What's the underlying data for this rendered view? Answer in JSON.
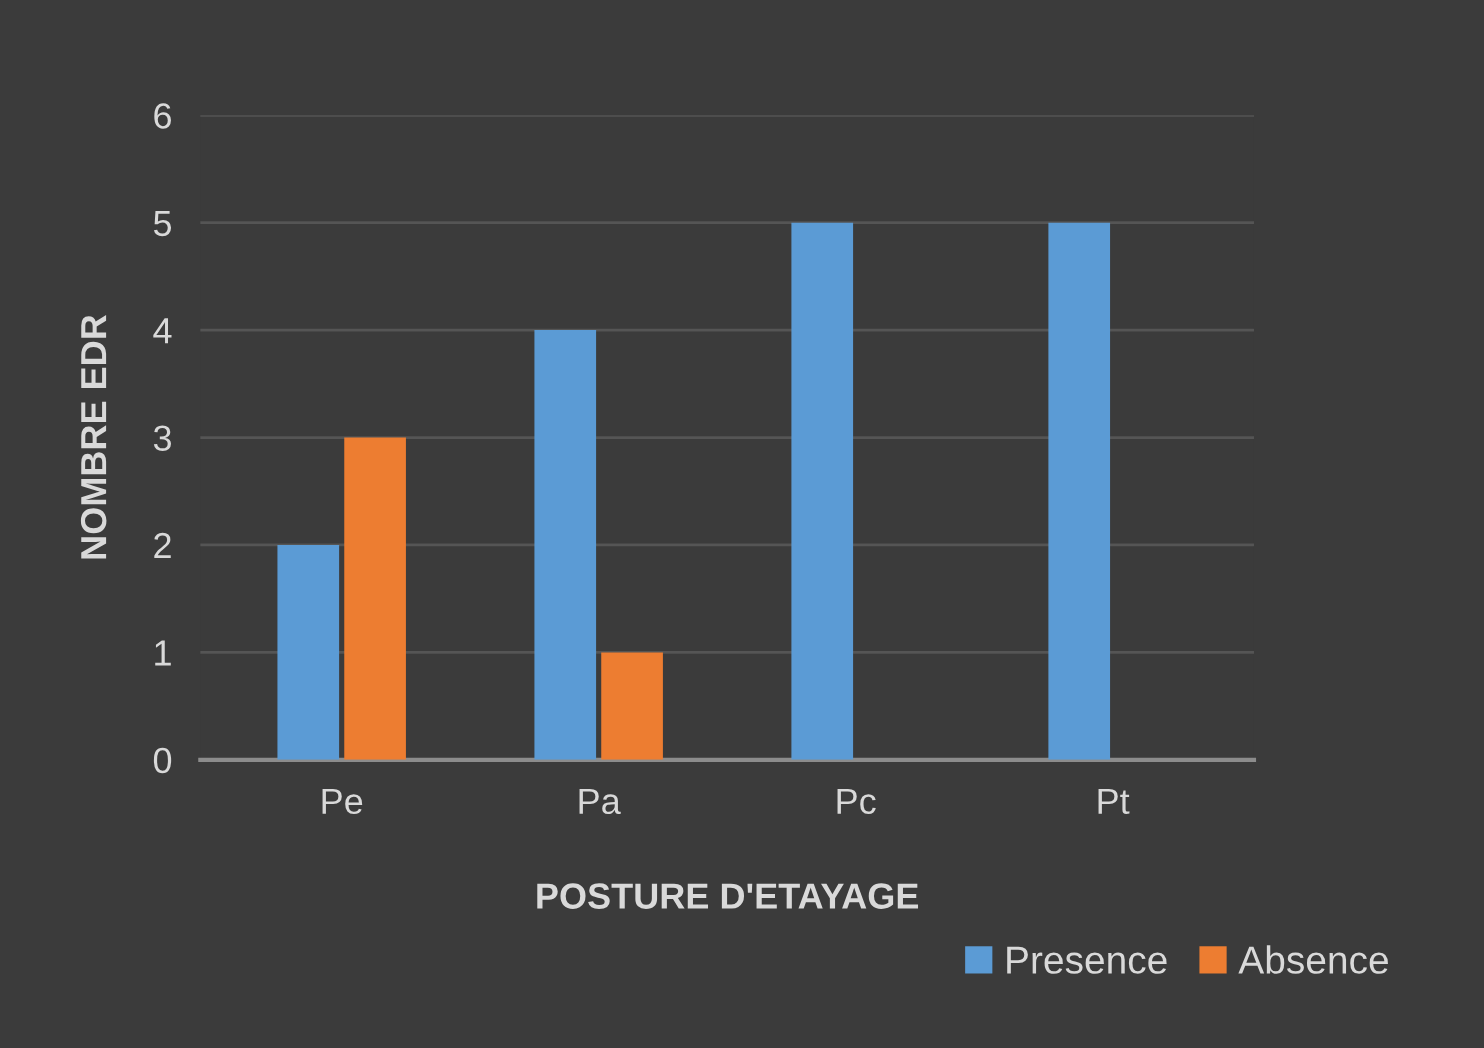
{
  "chart_data": {
    "type": "bar",
    "xlabel": "POSTURE D'ETAYAGE",
    "ylabel": "NOMBRE EDR",
    "categories": [
      "Pe",
      "Pa",
      "Pc",
      "Pt"
    ],
    "series": [
      {
        "name": "Presence",
        "color": "#5b9bd5",
        "values": [
          2,
          4,
          5,
          5
        ]
      },
      {
        "name": "Absence",
        "color": "#ed7d31",
        "values": [
          3,
          1,
          0,
          0
        ]
      }
    ],
    "ylim": [
      0,
      6
    ],
    "yticks": [
      0,
      1,
      2,
      3,
      4,
      5,
      6
    ],
    "grid": "y",
    "legend": "bottom right"
  }
}
